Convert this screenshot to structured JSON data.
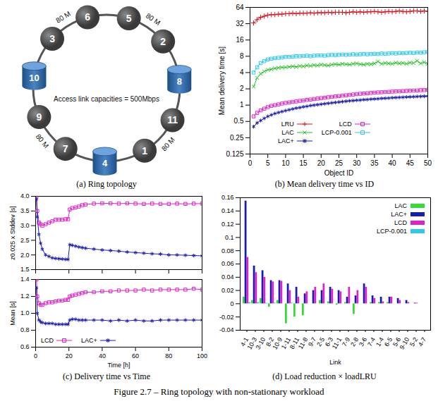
{
  "figure_caption": "Figure 2.7 – Ring topology with non-stationary workload",
  "diagram": {
    "caption": "(a) Ring topology",
    "label": "Access link capacities = 500Mbps",
    "nodes": [
      {
        "label": "6"
      },
      {
        "label": "5"
      },
      {
        "label": "2"
      },
      {
        "label": "8",
        "storage": true
      },
      {
        "label": "11"
      },
      {
        "label": "1"
      },
      {
        "label": "4",
        "storage": true
      },
      {
        "label": "7"
      },
      {
        "label": "9"
      },
      {
        "label": "10",
        "storage": true
      },
      {
        "label": "3"
      }
    ],
    "link_labels": [
      {
        "from": "3",
        "to": "6",
        "label": "80 M"
      },
      {
        "from": "5",
        "to": "2",
        "label": "80 M"
      },
      {
        "from": "9",
        "to": "7",
        "label": "80 M"
      },
      {
        "from": "1",
        "to": "11",
        "label": "80 M"
      }
    ]
  },
  "chart_data": [
    {
      "type": "line",
      "caption": "(b) Mean delivery time vs ID",
      "x_label": "Object ID",
      "y_label": "Mean delivery time [s]",
      "x": [
        1,
        2,
        3,
        4,
        5,
        6,
        7,
        8,
        9,
        10,
        11,
        12,
        13,
        14,
        15,
        16,
        17,
        18,
        19,
        20,
        21,
        22,
        23,
        24,
        25,
        26,
        27,
        28,
        29,
        30,
        31,
        32,
        33,
        34,
        35,
        36,
        37,
        38,
        39,
        40,
        41,
        42,
        43,
        44,
        45,
        46,
        47,
        48,
        49,
        50
      ],
      "xlim": [
        0,
        50
      ],
      "xticks": [
        0,
        5,
        10,
        15,
        20,
        25,
        30,
        35,
        40,
        45,
        50
      ],
      "ylim": [
        0.125,
        64
      ],
      "yticks": [
        0.125,
        0.25,
        0.5,
        1,
        2,
        4,
        8,
        16,
        32,
        64
      ],
      "log": "y",
      "legend": "bottom",
      "series": [
        {
          "name": "LRU",
          "color": "#e3101a",
          "marker": "plus",
          "values": [
            33,
            38,
            42,
            44,
            46,
            47,
            47,
            48,
            48,
            49,
            49,
            50,
            49,
            50,
            50,
            50,
            51,
            50,
            51,
            51,
            51,
            52,
            51,
            52,
            52,
            52,
            51,
            52,
            53,
            52,
            53,
            52,
            53,
            53,
            54,
            53,
            52,
            53,
            54,
            53,
            54,
            55,
            54,
            53,
            54,
            55,
            55,
            54,
            55,
            54
          ]
        },
        {
          "name": "LCD",
          "color": "#e020c8",
          "marker": "square",
          "values": [
            0.62,
            0.72,
            0.8,
            0.86,
            0.92,
            0.97,
            1,
            1.03,
            1.07,
            1.1,
            1.12,
            1.15,
            1.17,
            1.2,
            1.22,
            1.25,
            1.27,
            1.3,
            1.32,
            1.35,
            1.37,
            1.4,
            1.42,
            1.45,
            1.47,
            1.5,
            1.52,
            1.55,
            1.57,
            1.6,
            1.62,
            1.64,
            1.66,
            1.68,
            1.7,
            1.72,
            1.73,
            1.75,
            1.76,
            1.78,
            1.79,
            1.8,
            1.82,
            1.83,
            1.85,
            1.86,
            1.87,
            1.89,
            1.9,
            1.92
          ]
        },
        {
          "name": "LAC",
          "color": "#22c322",
          "marker": "times",
          "values": [
            2.2,
            3.2,
            3.8,
            4.2,
            4.5,
            4.6,
            4.8,
            4.9,
            5,
            5,
            5.1,
            5.2,
            5.1,
            5.3,
            5.2,
            5.4,
            5.3,
            5.5,
            5.4,
            5.6,
            5.5,
            5.4,
            5.6,
            5.7,
            5.6,
            5.8,
            5.7,
            5.6,
            5.8,
            5.9,
            5.7,
            5.6,
            5.8,
            5.7,
            5.9,
            6.4,
            5.8,
            6.0,
            5.9,
            5.8,
            6.1,
            5.9,
            6.0,
            5.8,
            6.1,
            6.0,
            6.6,
            5.9,
            6.2,
            5.8
          ]
        },
        {
          "name": "LCP-0.001",
          "color": "#2cc8f0",
          "marker": "square",
          "values": [
            4,
            5,
            6,
            6.5,
            7,
            7.2,
            7.4,
            7.5,
            7.6,
            7.8,
            7.8,
            7.9,
            8,
            8,
            8.1,
            8.2,
            8,
            8.2,
            8.3,
            8.3,
            8.2,
            8.4,
            8.5,
            8.4,
            8.5,
            8.6,
            8.5,
            8.6,
            8.7,
            8.6,
            8.7,
            8.8,
            8.7,
            8.8,
            8.9,
            8.8,
            9,
            8.9,
            9,
            9.1,
            9,
            9.2,
            9.1,
            9.2,
            9.3,
            9.2,
            9.4,
            9.3,
            9.5,
            9.6
          ]
        },
        {
          "name": "LAC+",
          "color": "#1a1ab4",
          "marker": "asterisk",
          "values": [
            0.4,
            0.47,
            0.52,
            0.57,
            0.62,
            0.66,
            0.7,
            0.73,
            0.76,
            0.79,
            0.82,
            0.85,
            0.88,
            0.9,
            0.93,
            0.95,
            0.98,
            1,
            1.02,
            1.04,
            1.06,
            1.08,
            1.1,
            1.12,
            1.14,
            1.16,
            1.18,
            1.2,
            1.21,
            1.23,
            1.24,
            1.26,
            1.27,
            1.29,
            1.3,
            1.31,
            1.33,
            1.34,
            1.35,
            1.37,
            1.38,
            1.39,
            1.4,
            1.41,
            1.42,
            1.43,
            1.44,
            1.45,
            1.46,
            1.47
          ]
        }
      ]
    },
    {
      "type": "line",
      "y_label": "z0.025 x Stddev [s]",
      "x": [
        0.5,
        1,
        2,
        3,
        4,
        6,
        8,
        10,
        12,
        14,
        16,
        18,
        19.5,
        20.5,
        22,
        24,
        26,
        28,
        30,
        35,
        40,
        45,
        50,
        55,
        60,
        65,
        70,
        75,
        80,
        85,
        90,
        95,
        100
      ],
      "xlim": [
        0,
        100
      ],
      "xticks": [
        0,
        20,
        40,
        60,
        80,
        100
      ],
      "ylim": [
        1.5,
        4.0
      ],
      "yticks": [
        1.5,
        {
          "value": 2,
          "label": "2.0"
        },
        2.5,
        {
          "value": 3,
          "label": "3.0"
        },
        3.5,
        {
          "value": 4,
          "label": "4.0"
        }
      ],
      "tick_labels": "y",
      "series": [
        {
          "name": "LCD",
          "color": "#e020c8",
          "marker": "square",
          "values": [
            4.0,
            3.5,
            3.1,
            3.05,
            3.0,
            3.05,
            3.1,
            3.15,
            3.2,
            3.2,
            3.2,
            3.22,
            3.22,
            3.55,
            3.6,
            3.62,
            3.65,
            3.7,
            3.72,
            3.75,
            3.76,
            3.76,
            3.75,
            3.76,
            3.75,
            3.74,
            3.75,
            3.74,
            3.74,
            3.75,
            3.74,
            3.75,
            3.75
          ]
        },
        {
          "name": "LAC+",
          "color": "#1a1ab4",
          "marker": "asterisk",
          "values": [
            3.9,
            3.3,
            2.7,
            2.4,
            2.2,
            2.0,
            1.95,
            1.9,
            1.88,
            1.87,
            1.86,
            1.85,
            1.85,
            2.35,
            2.33,
            2.3,
            2.27,
            2.25,
            2.23,
            2.2,
            2.17,
            2.15,
            2.13,
            2.1,
            2.08,
            2.06,
            2.04,
            2.03,
            2.0,
            2.0,
            1.99,
            1.98,
            1.97
          ]
        }
      ]
    },
    {
      "type": "line",
      "caption": "(c) Delivery time vs Time",
      "x_label": "Time [h]",
      "y_label": "Mean [s]",
      "x": [
        0.5,
        1,
        2,
        3,
        4,
        6,
        8,
        10,
        12,
        14,
        16,
        18,
        19.5,
        20.5,
        22,
        24,
        26,
        28,
        30,
        35,
        40,
        45,
        50,
        55,
        60,
        65,
        70,
        75,
        80,
        85,
        90,
        95,
        100
      ],
      "xlim": [
        0,
        100
      ],
      "xticks": [
        0,
        20,
        40,
        60,
        80,
        100
      ],
      "ylim": [
        0.6,
        1.4
      ],
      "yticks": [
        0.6,
        0.8,
        {
          "value": 1,
          "label": "1.0"
        },
        1.2,
        1.4
      ],
      "legend": "bottom-left",
      "series": [
        {
          "name": "LCD",
          "color": "#e020c8",
          "marker": "square",
          "values": [
            1.4,
            1.2,
            1.12,
            1.1,
            1.1,
            1.12,
            1.13,
            1.13,
            1.14,
            1.15,
            1.15,
            1.16,
            1.16,
            1.2,
            1.21,
            1.22,
            1.23,
            1.24,
            1.25,
            1.25,
            1.26,
            1.26,
            1.27,
            1.27,
            1.27,
            1.28,
            1.27,
            1.28,
            1.28,
            1.28,
            1.28,
            1.29,
            1.28
          ]
        },
        {
          "name": "LAC+",
          "color": "#1a1ab4",
          "marker": "asterisk",
          "values": [
            1.3,
            1.0,
            0.92,
            0.9,
            0.89,
            0.88,
            0.88,
            0.88,
            0.87,
            0.87,
            0.87,
            0.87,
            0.87,
            0.92,
            0.93,
            0.93,
            0.92,
            0.92,
            0.92,
            0.92,
            0.92,
            0.91,
            0.92,
            0.91,
            0.92,
            0.91,
            0.91,
            0.92,
            0.92,
            0.92,
            0.92,
            0.92,
            0.92
          ]
        }
      ]
    },
    {
      "type": "bar",
      "caption": "(d) Load reduction × loadLRU",
      "x_label": "Link",
      "categories": [
        "4-1",
        "10-3",
        "3-10",
        "8-2",
        "10-9",
        "1-11",
        "8-11",
        "11-8",
        "9-7",
        "2-5",
        "6-3",
        "11-1",
        "7-9",
        "2-8",
        "3-6",
        "7-4",
        "1-4",
        "6-5",
        "5-6",
        "9-10",
        "5-2",
        "4-7"
      ],
      "ylim": [
        -0.04,
        0.16
      ],
      "yticks": [
        -0.04,
        -0.02,
        0,
        0.02,
        0.04,
        0.06,
        0.08,
        0.1,
        0.12,
        0.14,
        0.16
      ],
      "legend": "top-right",
      "series": [
        {
          "name": "LAC",
          "color": "#33dd33",
          "values": [
            0.01,
            0.005,
            0.008,
            -0.005,
            0.005,
            -0.03,
            -0.02,
            -0.018,
            0,
            0.005,
            0.003,
            -0.002,
            0.002,
            -0.016,
            0,
            0.002,
            0.002,
            0.002,
            0,
            0,
            0,
            0
          ]
        },
        {
          "name": "LAC+",
          "color": "#1a1ab4",
          "values": [
            0.155,
            0.057,
            0.05,
            0.035,
            0.035,
            0.03,
            0.025,
            0.015,
            0.02,
            0.02,
            0.025,
            0.02,
            0.01,
            0.012,
            0.03,
            0.012,
            0.01,
            0.01,
            0.008,
            0.005,
            0.001,
            0
          ]
        },
        {
          "name": "LCD",
          "color": "#e020c8",
          "values": [
            0.07,
            0.047,
            0.04,
            0.033,
            0.034,
            0.02,
            0.01,
            0.018,
            0.025,
            0.03,
            0.022,
            0.018,
            0.025,
            0.02,
            0.025,
            0.008,
            0.003,
            0.01,
            0.005,
            0.002,
            0.001,
            0
          ]
        },
        {
          "name": "LCP-0.001",
          "color": "#2cc8f0",
          "values": [
            0.002,
            0.002,
            0.001,
            0.001,
            0,
            0.001,
            0,
            0,
            0,
            0,
            0,
            0,
            0,
            0,
            0,
            0,
            0,
            0,
            0,
            0,
            0,
            0
          ]
        }
      ]
    }
  ]
}
